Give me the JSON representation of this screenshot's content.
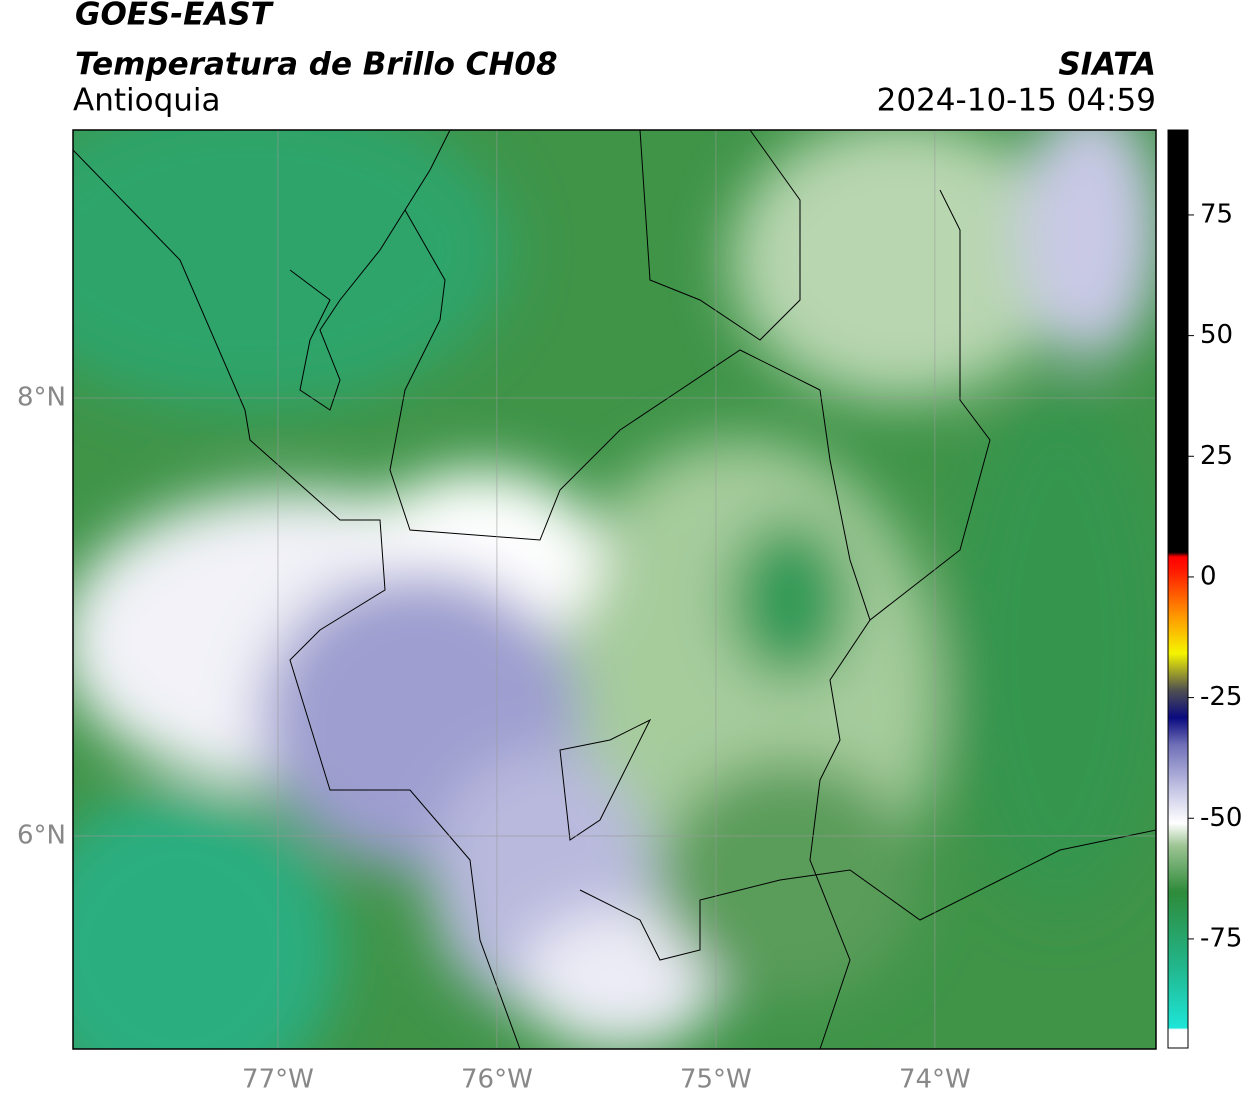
{
  "header": {
    "title": "GOES-EAST",
    "subtitle": "Temperatura de Brillo CH08",
    "region": "Antioquia",
    "source": "SIATA",
    "datetime": "2024-10-15 04:59"
  },
  "map": {
    "xlim": [
      -77.936,
      -72.99
    ],
    "ylim": [
      5.027,
      9.224
    ],
    "xticks": [
      {
        "value": -77,
        "label": "77°W"
      },
      {
        "value": -76,
        "label": "76°W"
      },
      {
        "value": -75,
        "label": "75°W"
      },
      {
        "value": -74,
        "label": "74°W"
      }
    ],
    "yticks": [
      {
        "value": 6,
        "label": "6°N"
      },
      {
        "value": 8,
        "label": "8°N"
      }
    ],
    "grid": true
  },
  "colorbar": {
    "lim": [
      -97.6,
      92.6
    ],
    "ticks": [
      -75,
      -50,
      -25,
      0,
      25,
      50,
      75
    ]
  }
}
